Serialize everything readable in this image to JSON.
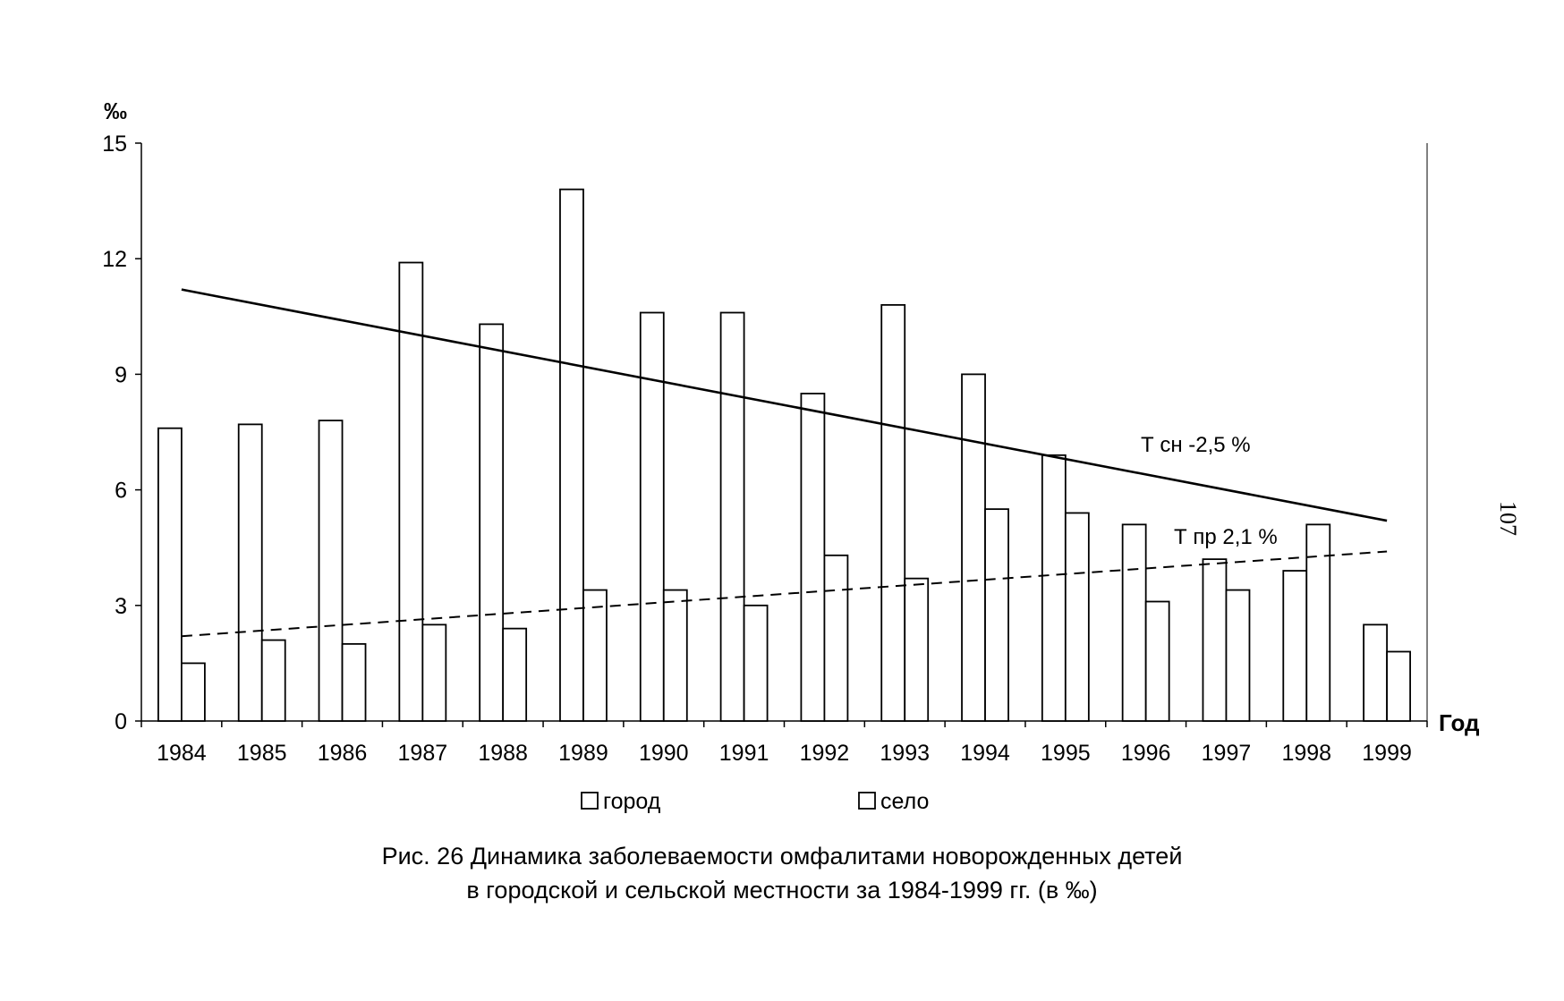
{
  "page_number": "107",
  "caption": {
    "line1": "Рис. 26 Динамика заболеваемости омфалитами новорожденных детей",
    "line2": "в городской и сельской местности за 1984-1999 гг. (в ‰)"
  },
  "chart_data": {
    "type": "bar",
    "title": "",
    "ylabel": "‰",
    "xlabel": "Год",
    "ylim": [
      0,
      15
    ],
    "yticks": [
      0,
      3,
      6,
      9,
      12,
      15
    ],
    "grid": false,
    "legend_position": "bottom",
    "categories": [
      "1984",
      "1985",
      "1986",
      "1987",
      "1988",
      "1989",
      "1990",
      "1991",
      "1992",
      "1993",
      "1994",
      "1995",
      "1996",
      "1997",
      "1998",
      "1999"
    ],
    "series": [
      {
        "name": "город",
        "values": [
          7.6,
          7.7,
          7.8,
          11.9,
          10.3,
          13.8,
          10.6,
          10.6,
          8.5,
          10.8,
          9.0,
          6.9,
          5.1,
          4.2,
          3.9,
          2.5
        ]
      },
      {
        "name": "село",
        "values": [
          1.5,
          2.1,
          2.0,
          2.5,
          2.4,
          3.4,
          3.4,
          3.0,
          4.3,
          3.7,
          5.5,
          5.4,
          3.1,
          3.4,
          5.1,
          1.8
        ]
      }
    ],
    "trendlines": [
      {
        "series": "город",
        "label": "Т сн  -2,5 %",
        "style": "solid",
        "start": 11.2,
        "end": 5.2
      },
      {
        "series": "село",
        "label": "Т пр 2,1 %",
        "style": "dashed",
        "start": 2.2,
        "end": 4.4
      }
    ]
  }
}
